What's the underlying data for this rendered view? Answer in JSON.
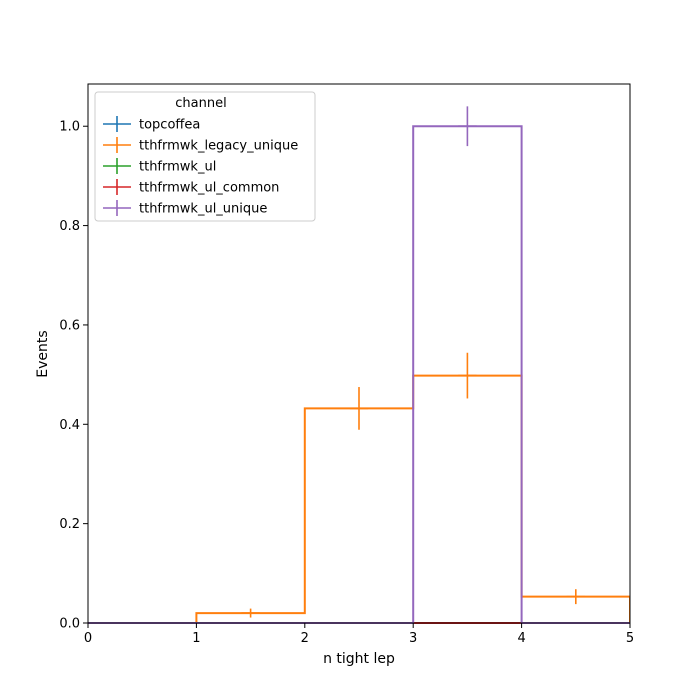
{
  "chart_data": {
    "type": "histogram-step",
    "xlabel": "n tight lep",
    "ylabel": "Events",
    "xlim": [
      0,
      5
    ],
    "ylim": [
      0,
      1.085
    ],
    "x_ticks": [
      0,
      1,
      2,
      3,
      4,
      5
    ],
    "y_ticks": [
      0.0,
      0.2,
      0.4,
      0.6,
      0.8,
      1.0
    ],
    "grid": false,
    "bin_edges": [
      0,
      1,
      2,
      3,
      4,
      5
    ],
    "legend": {
      "title": "channel",
      "position": "top-left"
    },
    "series": [
      {
        "name": "topcoffea",
        "color": "#1f77b4",
        "values": [
          0,
          0,
          0,
          0,
          0
        ],
        "errors": [
          0,
          0,
          0,
          0,
          0
        ]
      },
      {
        "name": "tthfrmwk_legacy_unique",
        "color": "#ff7f0e",
        "values": [
          0,
          0.02,
          0.432,
          0.498,
          0.053
        ],
        "errors": [
          0,
          0.009,
          0.043,
          0.046,
          0.015
        ]
      },
      {
        "name": "tthfrmwk_ul",
        "color": "#2ca02c",
        "values": [
          0,
          0,
          0,
          0,
          0
        ],
        "errors": [
          0,
          0,
          0,
          0,
          0
        ]
      },
      {
        "name": "tthfrmwk_ul_common",
        "color": "#d62728",
        "values": [
          0,
          0,
          0,
          0,
          0
        ],
        "errors": [
          0,
          0,
          0,
          0,
          0
        ]
      },
      {
        "name": "tthfrmwk_ul_unique",
        "color": "#9467bd",
        "values": [
          0,
          0,
          0,
          1.0,
          0
        ],
        "errors": [
          0,
          0,
          0,
          0.04,
          0
        ]
      }
    ]
  }
}
